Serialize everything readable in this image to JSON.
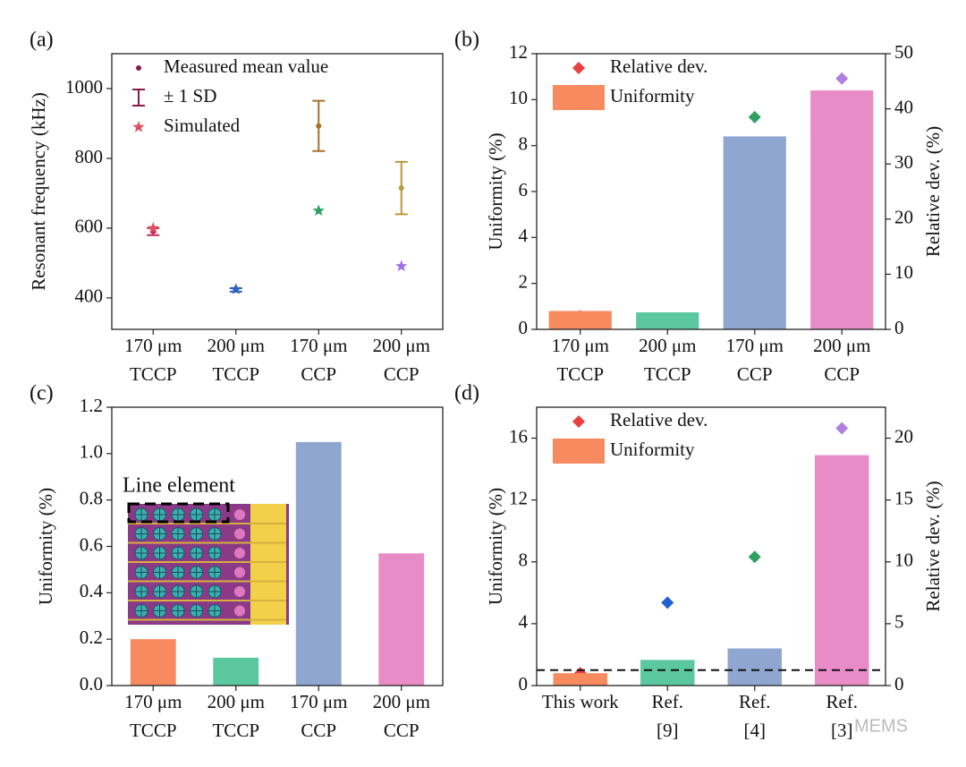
{
  "watermark": "MEMS",
  "chart_data": [
    {
      "type": "scatter",
      "panel": "(a)",
      "ylabel": "Resonant frequency (kHz)",
      "categories": [
        [
          "170 μm",
          "TCCP"
        ],
        [
          "200 μm",
          "TCCP"
        ],
        [
          "170 μm",
          "CCP"
        ],
        [
          "200 μm",
          "CCP"
        ]
      ],
      "ylim": [
        310,
        1100
      ],
      "yticks": [
        400,
        600,
        800,
        1000
      ],
      "legend": "upper left",
      "series": [
        {
          "name": "Measured mean value",
          "error_name": "± 1 SD",
          "marker": "circle",
          "color": "#8b1a4a",
          "colors": [
            "#c0305a",
            "#3060c0",
            "#a8702a",
            "#b8983a"
          ],
          "values": [
            590,
            423,
            893,
            715
          ],
          "errors": [
            10,
            5,
            72,
            75
          ]
        },
        {
          "name": "Simulated",
          "marker": "star",
          "color": "#e05060",
          "colors": [
            "#e05060",
            "#3060c0",
            "#30a060",
            "#a070e0"
          ],
          "values": [
            600,
            425,
            650,
            491
          ]
        }
      ]
    },
    {
      "type": "bar",
      "panel": "(b)",
      "ylabel": "Uniformity (%)",
      "y2label": "Relative dev. (%)",
      "categories": [
        [
          "170 μm",
          "TCCP"
        ],
        [
          "200 μm",
          "TCCP"
        ],
        [
          "170 μm",
          "CCP"
        ],
        [
          "200 μm",
          "CCP"
        ]
      ],
      "ylim": [
        0,
        12
      ],
      "yticks": [
        0,
        2,
        4,
        6,
        8,
        10,
        12
      ],
      "y2lim": [
        0,
        50
      ],
      "y2ticks": [
        0,
        10,
        20,
        30,
        40,
        50
      ],
      "legend": "upper left",
      "series": [
        {
          "name": "Relative dev.",
          "marker": "diamond",
          "axis": "y2",
          "color": "#e84040",
          "colors": [
            "#e84040",
            "#2060d0",
            "#30a060",
            "#b080e0"
          ],
          "values": [
            2.4,
            1.1,
            38.5,
            45.5
          ]
        },
        {
          "name": "Uniformity",
          "marker": "bar",
          "color": "#f88a60",
          "colors": [
            "#f88a60",
            "#5cc8a0",
            "#8ea6d0",
            "#e88cc8"
          ],
          "values": [
            0.8,
            0.74,
            8.4,
            10.4
          ]
        }
      ]
    },
    {
      "type": "bar",
      "panel": "(c)",
      "ylabel": "Uniformity (%)",
      "annotation": "Line element",
      "categories": [
        [
          "170 μm",
          "TCCP"
        ],
        [
          "200 μm",
          "TCCP"
        ],
        [
          "170 μm",
          "CCP"
        ],
        [
          "200 μm",
          "CCP"
        ]
      ],
      "ylim": [
        0,
        1.2
      ],
      "yticks": [
        {
          "value": 0,
          "label": "0.0"
        },
        0.2,
        0.4,
        0.6,
        0.8,
        {
          "value": 1,
          "label": "1.0"
        },
        1.2
      ],
      "series": [
        {
          "marker": "bar",
          "colors": [
            "#f88a60",
            "#5cc8a0",
            "#8ea6d0",
            "#e88cc8"
          ],
          "values": [
            0.2,
            0.12,
            1.05,
            0.57
          ]
        }
      ]
    },
    {
      "type": "bar",
      "panel": "(d)",
      "ylabel": "Uniformity (%)",
      "y2label": "Relative dev. (%)",
      "categories": [
        [
          "This work"
        ],
        [
          "Ref.",
          "[9]"
        ],
        [
          "Ref.",
          "[4]"
        ],
        [
          "Ref.",
          "[3]"
        ]
      ],
      "ylim": [
        0,
        18
      ],
      "yticks": [
        0,
        4,
        8,
        12,
        16
      ],
      "y2lim": [
        0,
        22.5
      ],
      "y2ticks": [
        0,
        5,
        10,
        15,
        20
      ],
      "reference_line": 1,
      "legend": "upper left",
      "series": [
        {
          "name": "Relative dev.",
          "marker": "diamond",
          "axis": "y2",
          "color": "#e84040",
          "colors": [
            "#e84040",
            "#2060d0",
            "#30a060",
            "#b080e0"
          ],
          "values": [
            1.0,
            6.7,
            10.4,
            20.8
          ]
        },
        {
          "name": "Uniformity",
          "marker": "bar",
          "color": "#f88a60",
          "colors": [
            "#f88a60",
            "#5cc8a0",
            "#8ea6d0",
            "#e88cc8"
          ],
          "values": [
            0.8,
            1.66,
            2.4,
            14.9
          ]
        }
      ]
    }
  ]
}
